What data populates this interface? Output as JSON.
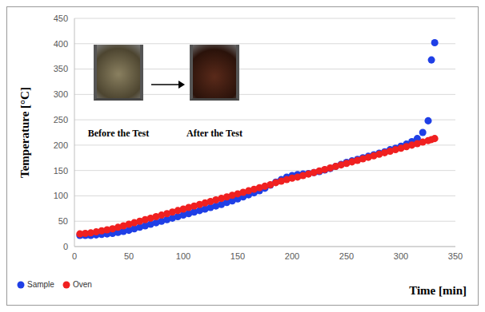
{
  "chart_data": {
    "type": "scatter",
    "xlabel": "Time [min]",
    "ylabel": "Temperature [°C]",
    "annotations": [
      "Before the Test",
      "After the Test"
    ],
    "x": [
      5,
      10,
      15,
      20,
      25,
      30,
      35,
      40,
      45,
      50,
      55,
      60,
      65,
      70,
      75,
      80,
      85,
      90,
      95,
      100,
      105,
      110,
      115,
      120,
      125,
      130,
      135,
      140,
      145,
      150,
      155,
      160,
      165,
      170,
      175,
      180,
      185,
      190,
      195,
      200,
      205,
      210,
      215,
      220,
      225,
      230,
      235,
      240,
      245,
      250,
      255,
      260,
      265,
      270,
      275,
      280,
      285,
      290,
      295,
      300,
      305,
      310,
      315,
      320,
      325,
      328,
      331
    ],
    "series": [
      {
        "name": "Sample",
        "color": "#1f3fe6",
        "marker": "circle",
        "values": [
          22,
          22,
          22,
          23,
          24,
          25,
          26,
          28,
          30,
          32,
          35,
          38,
          41,
          44,
          47,
          50,
          53,
          56,
          59,
          62,
          65,
          68,
          71,
          74,
          77,
          80,
          83,
          87,
          90,
          94,
          98,
          102,
          106,
          110,
          115,
          121,
          127,
          132,
          137,
          140,
          142,
          143,
          144,
          146,
          148,
          151,
          154,
          158,
          162,
          166,
          169,
          172,
          175,
          178,
          181,
          184,
          187,
          191,
          194,
          198,
          202,
          207,
          213,
          225,
          248,
          368,
          402
        ]
      },
      {
        "name": "Oven",
        "color": "#f02020",
        "marker": "circle",
        "values": [
          25,
          26,
          27,
          29,
          31,
          33,
          35,
          38,
          41,
          44,
          47,
          50,
          53,
          56,
          59,
          62,
          65,
          68,
          71,
          74,
          77,
          80,
          83,
          86,
          89,
          92,
          95,
          98,
          101,
          104,
          107,
          110,
          113,
          116,
          119,
          122,
          126,
          129,
          132,
          135,
          137,
          140,
          143,
          146,
          149,
          152,
          155,
          158,
          161,
          164,
          167,
          170,
          173,
          176,
          179,
          182,
          185,
          188,
          191,
          194,
          197,
          200,
          203,
          206,
          209,
          211,
          213
        ]
      }
    ],
    "xlim": [
      0,
      350
    ],
    "xticks": [
      0,
      50,
      100,
      150,
      200,
      250,
      300,
      350
    ],
    "ylim": [
      0,
      450
    ],
    "yticks": [
      0,
      50,
      100,
      150,
      200,
      250,
      300,
      350,
      400,
      450
    ],
    "grid": true,
    "legend": "bottom left"
  }
}
